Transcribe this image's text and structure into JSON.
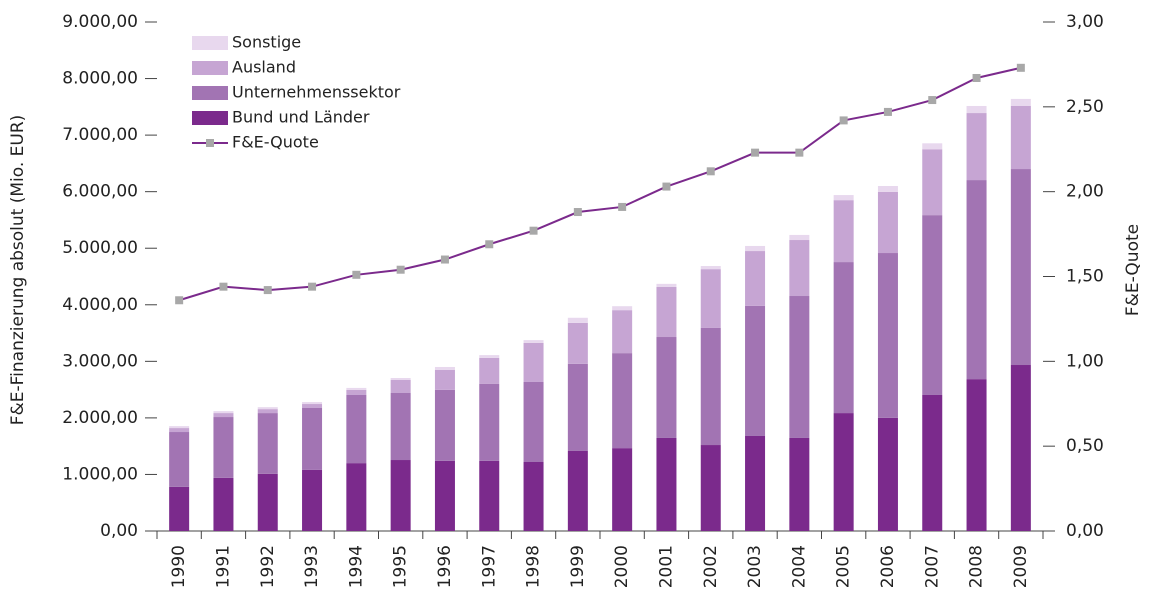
{
  "chart_data": {
    "type": "bar",
    "stacked": true,
    "categories": [
      "1990",
      "1991",
      "1992",
      "1993",
      "1994",
      "1995",
      "1996",
      "1997",
      "1998",
      "1999",
      "2000",
      "2001",
      "2002",
      "2003",
      "2004",
      "2005",
      "2006",
      "2007",
      "2008",
      "2009"
    ],
    "series": [
      {
        "name": "Bund und Länder",
        "color": "#7b2a8c",
        "values": [
          780,
          940,
          1010,
          1080,
          1200,
          1255,
          1240,
          1240,
          1220,
          1415,
          1465,
          1645,
          1520,
          1680,
          1645,
          2085,
          2000,
          2405,
          2685,
          2935
        ]
      },
      {
        "name": "Unternehmenssektor",
        "color": "#a274b3",
        "values": [
          970,
          1075,
          1075,
          1095,
          1205,
          1185,
          1255,
          1360,
          1415,
          1540,
          1680,
          1785,
          2070,
          2300,
          2510,
          2670,
          2915,
          3180,
          3520,
          3465
        ]
      },
      {
        "name": "Ausland",
        "color": "#c6a5d3",
        "values": [
          70,
          70,
          70,
          70,
          90,
          230,
          355,
          460,
          690,
          725,
          760,
          885,
          1040,
          970,
          990,
          1095,
          1080,
          1165,
          1185,
          1115
        ]
      },
      {
        "name": "Sonstige",
        "color": "#e8d8ee",
        "values": [
          35,
          35,
          35,
          35,
          35,
          35,
          50,
          50,
          50,
          90,
          70,
          55,
          55,
          90,
          90,
          90,
          105,
          105,
          125,
          125
        ]
      },
      {
        "name": "F&E-Quote",
        "type": "line",
        "axis": "y2",
        "color": "#7b2a8c",
        "marker_color": "#a8a8a8",
        "values": [
          1.36,
          1.44,
          1.42,
          1.44,
          1.51,
          1.54,
          1.6,
          1.69,
          1.77,
          1.88,
          1.91,
          2.03,
          2.12,
          2.23,
          2.23,
          2.42,
          2.47,
          2.54,
          2.67,
          2.73
        ]
      }
    ],
    "ylabel": "F&E-Finanzierung absolut (Mio. EUR)",
    "y2label": "F&E-Quote",
    "ylim": [
      0,
      9000
    ],
    "yticks": [
      {
        "value": 0,
        "label": "0,00"
      },
      {
        "value": 1000,
        "label": "1.000,00"
      },
      {
        "value": 2000,
        "label": "2.000,00"
      },
      {
        "value": 3000,
        "label": "3.000,00"
      },
      {
        "value": 4000,
        "label": "4.000,00"
      },
      {
        "value": 5000,
        "label": "5.000,00"
      },
      {
        "value": 6000,
        "label": "6.000,00"
      },
      {
        "value": 7000,
        "label": "7.000,00"
      },
      {
        "value": 8000,
        "label": "8.000,00"
      },
      {
        "value": 9000,
        "label": "9.000,00"
      }
    ],
    "y2lim": [
      0,
      3
    ],
    "y2ticks": [
      {
        "value": 0,
        "label": "0,00"
      },
      {
        "value": 0.5,
        "label": "0,50"
      },
      {
        "value": 1,
        "label": "1,00"
      },
      {
        "value": 1.5,
        "label": "1,50"
      },
      {
        "value": 2,
        "label": "2,00"
      },
      {
        "value": 2.5,
        "label": "2,50"
      },
      {
        "value": 3,
        "label": "3,00"
      }
    ],
    "legend": "upper left"
  }
}
